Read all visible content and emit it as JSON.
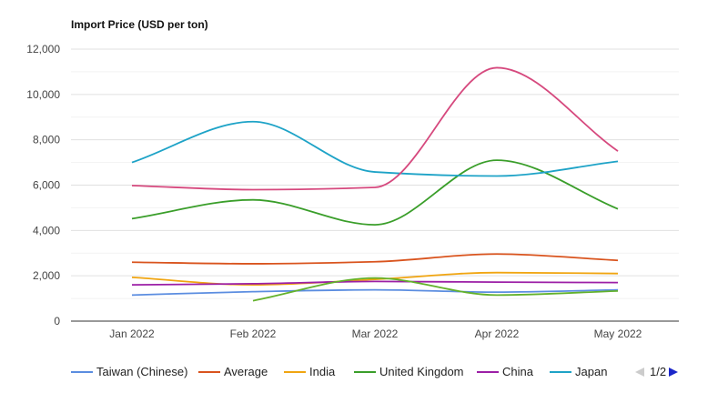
{
  "chart_data": {
    "type": "line",
    "title": "Import Price (USD per ton)",
    "xlabel": "",
    "ylabel": "",
    "categories": [
      "Jan 2022",
      "Feb 2022",
      "Mar 2022",
      "Apr 2022",
      "May 2022"
    ],
    "ylim": [
      0,
      12000
    ],
    "yticks": [
      0,
      2000,
      4000,
      6000,
      8000,
      10000,
      12000
    ],
    "ytick_labels": [
      "0",
      "2,000",
      "4,000",
      "6,000",
      "8,000",
      "10,000",
      "12,000"
    ],
    "grid": true,
    "legend_position": "bottom",
    "series": [
      {
        "name": "Taiwan (Chinese)",
        "color": "#5b8de0",
        "values": [
          1150,
          1300,
          1380,
          1280,
          1380
        ]
      },
      {
        "name": "Average",
        "color": "#d9541e",
        "values": [
          2600,
          2530,
          2620,
          2960,
          2680
        ]
      },
      {
        "name": "India",
        "color": "#f0a511",
        "values": [
          1930,
          1600,
          1840,
          2140,
          2100
        ]
      },
      {
        "name": "United Kingdom",
        "color": "#3a9e2a",
        "values": [
          4520,
          5350,
          4250,
          7100,
          4950
        ]
      },
      {
        "name": "China",
        "color": "#9c1fa6",
        "values": [
          1600,
          1650,
          1750,
          1720,
          1700
        ]
      },
      {
        "name": "Japan",
        "color": "#1ea3c7",
        "values": [
          7000,
          8800,
          6580,
          6400,
          7050
        ]
      },
      {
        "name": "",
        "color": "#d6497e",
        "values": [
          5980,
          5800,
          5900,
          11180,
          7500
        ]
      },
      {
        "name": "",
        "color": "#62b12b",
        "values": [
          null,
          900,
          1900,
          1150,
          1330
        ]
      }
    ]
  },
  "legend": {
    "page_label": "1/2"
  },
  "icons": {
    "prev": "chevron-left-icon",
    "next": "chevron-right-icon"
  }
}
